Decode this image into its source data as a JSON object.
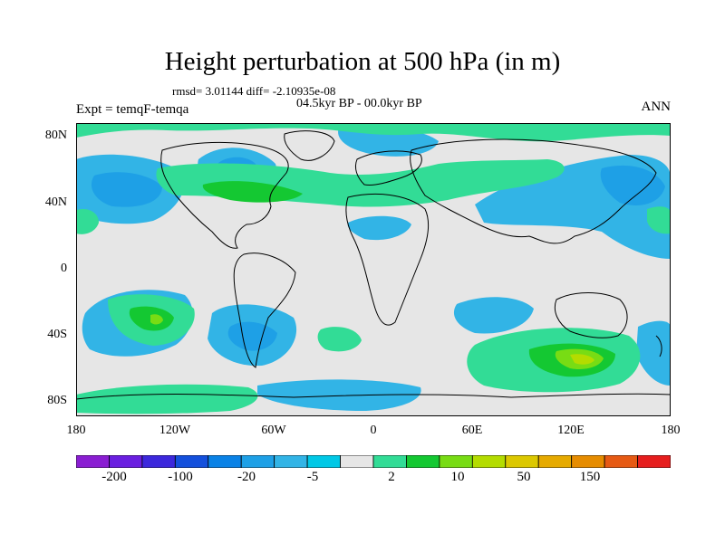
{
  "title": "Height perturbation at 500 hPa (in m)",
  "stats": "rmsd= 3.01144 diff= -2.10935e-08",
  "period": "04.5kyr BP - 00.0kyr BP",
  "left_label": "Expt = temqF-temqa",
  "right_label": "ANN",
  "lat_labels": [
    "80N",
    "40N",
    "0",
    "40S",
    "80S"
  ],
  "lon_labels": [
    "180",
    "120W",
    "60W",
    "0",
    "60E",
    "120E",
    "180"
  ],
  "colorbar": {
    "labels": [
      "-200",
      "-100",
      "-20",
      "-5",
      "2",
      "10",
      "50",
      "150"
    ],
    "colors": [
      "#8a1ed2",
      "#6a1fe0",
      "#3c28dc",
      "#1450dc",
      "#0a82e6",
      "#1ea0e6",
      "#32b4e6",
      "#00c8e6",
      "#e6e6e6",
      "#32dc96",
      "#14c832",
      "#78dc14",
      "#b4dc00",
      "#dcc800",
      "#e6aa00",
      "#e68c00",
      "#e65a14",
      "#e61e1e"
    ]
  }
}
